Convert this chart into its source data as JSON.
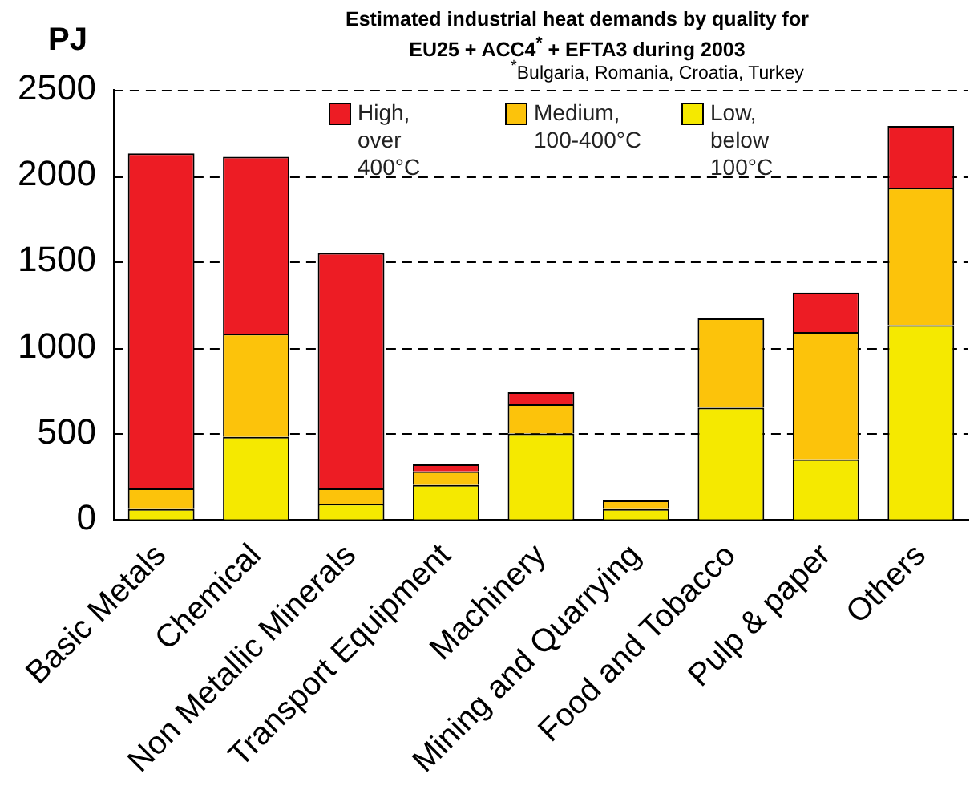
{
  "chart_data": {
    "type": "bar",
    "title": "Estimated industrial heat demands by quality for EU25 + ACC4$^{*}$ + EFTA3 during 2003",
    "subtitle": "$^{*}$Bulgaria, Romania, Croatia, Turkey",
    "ylabel": "PJ",
    "categories": [
      "Basic Metals",
      "Chemical",
      "Non Metallic Minerals",
      "Transport Equipment",
      "Machinery",
      "Mining and Quarrying",
      "Food and Tobacco",
      "Pulp & paper",
      "Others"
    ],
    "stacked": true,
    "series": [
      {
        "name": "Low, below 100°C",
        "color": "#f5e900",
        "values": [
          60,
          480,
          90,
          200,
          500,
          60,
          650,
          350,
          1130
        ]
      },
      {
        "name": "Medium, 100-400°C",
        "color": "#fcc30b",
        "values": [
          120,
          600,
          90,
          80,
          170,
          50,
          520,
          740,
          800
        ]
      },
      {
        "name": "High, over 400°C",
        "color": "#ed1c24",
        "values": [
          1950,
          1030,
          1370,
          40,
          70,
          0,
          0,
          230,
          360
        ]
      }
    ],
    "ylim": [
      0,
      2500
    ],
    "yticks": [
      0,
      500,
      1000,
      1500,
      2000,
      2500
    ],
    "grid": "y",
    "legend": "top"
  }
}
